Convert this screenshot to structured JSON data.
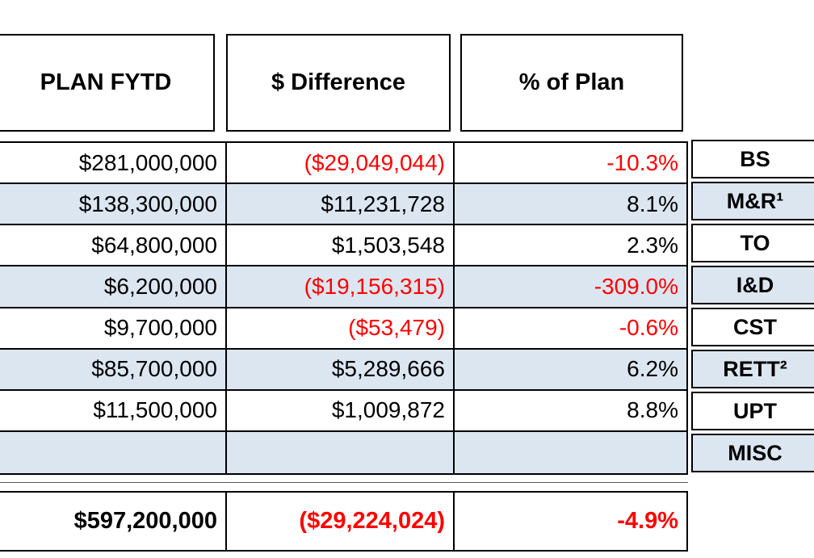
{
  "colors": {
    "negative": "#ff0000",
    "row_shade": "#dce6f1",
    "border": "#000000",
    "text": "#000000"
  },
  "table": {
    "column_headers": [
      "PLAN FYTD",
      "$ Difference",
      "% of Plan"
    ],
    "rows": [
      {
        "label": "BS",
        "plan_fytd": "$281,000,000",
        "difference": "($29,049,044)",
        "pct_of_plan": "-10.3%"
      },
      {
        "label": "M&R¹",
        "plan_fytd": "$138,300,000",
        "difference": "$11,231,728",
        "pct_of_plan": "8.1%"
      },
      {
        "label": "TO",
        "plan_fytd": "$64,800,000",
        "difference": "$1,503,548",
        "pct_of_plan": "2.3%"
      },
      {
        "label": "I&D",
        "plan_fytd": "$6,200,000",
        "difference": "($19,156,315)",
        "pct_of_plan": "-309.0%"
      },
      {
        "label": "CST",
        "plan_fytd": "$9,700,000",
        "difference": "($53,479)",
        "pct_of_plan": "-0.6%"
      },
      {
        "label": "RETT²",
        "plan_fytd": "$85,700,000",
        "difference": "$5,289,666",
        "pct_of_plan": "6.2%"
      },
      {
        "label": "UPT",
        "plan_fytd": "$11,500,000",
        "difference": "$1,009,872",
        "pct_of_plan": "8.8%"
      },
      {
        "label": "MISC",
        "plan_fytd": "",
        "difference": "",
        "pct_of_plan": ""
      }
    ],
    "total": {
      "plan_fytd": "$597,200,000",
      "difference": "($29,224,024)",
      "pct_of_plan": "-4.9%"
    }
  }
}
